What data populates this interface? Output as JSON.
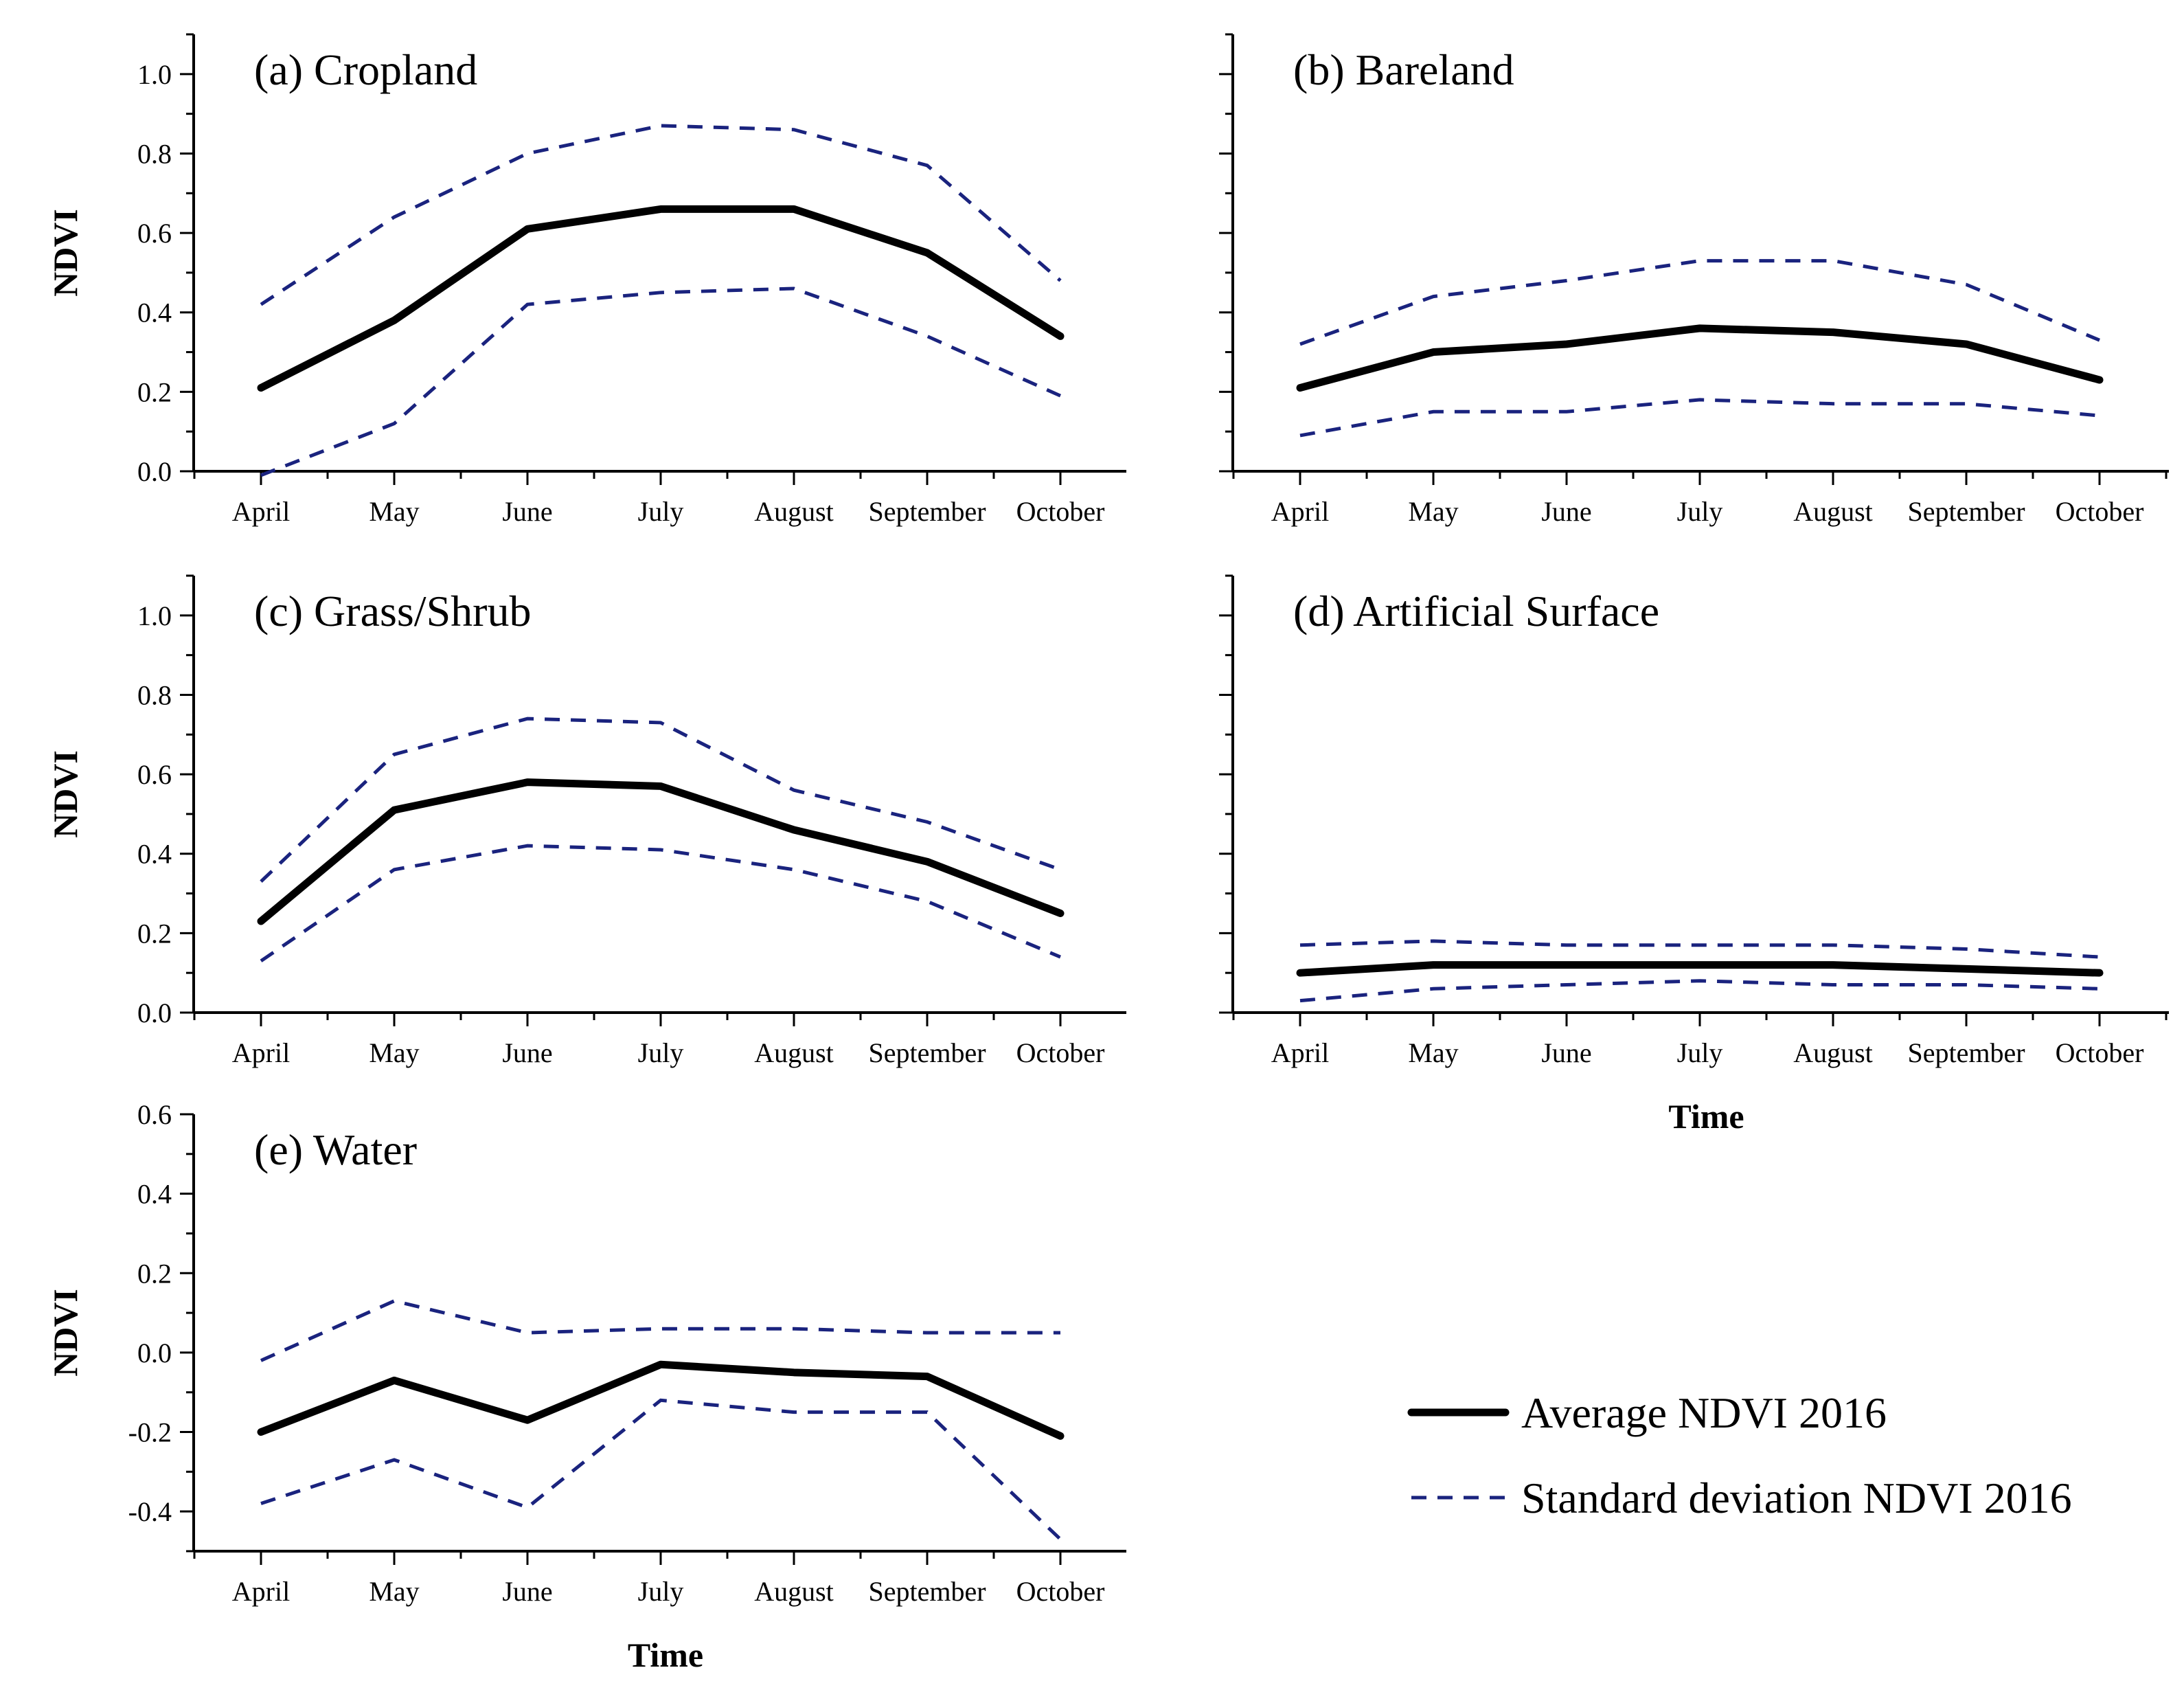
{
  "figure": {
    "legend": {
      "average_label": "Average NDVI 2016",
      "sd_label": "Standard deviation NDVI 2016"
    },
    "colors": {
      "average": "#000000",
      "sd": "#1a237e"
    }
  },
  "chart_data": [
    {
      "id": "a",
      "type": "line",
      "title": "(a) Cropland",
      "xlabel": "",
      "ylabel": "NDVI",
      "categories": [
        "April",
        "May",
        "June",
        "July",
        "August",
        "September",
        "October"
      ],
      "ylim": [
        0,
        1.1
      ],
      "yticks": [
        "0.0",
        "0.2",
        "0.4",
        "0.6",
        "0.8",
        "1.0"
      ],
      "series": [
        {
          "name": "Average NDVI 2016",
          "style": "solid",
          "values": [
            0.21,
            0.38,
            0.61,
            0.66,
            0.66,
            0.55,
            0.34
          ]
        },
        {
          "name": "Standard deviation NDVI 2016 (upper)",
          "style": "dashed",
          "values": [
            0.42,
            0.64,
            0.8,
            0.87,
            0.86,
            0.77,
            0.48
          ]
        },
        {
          "name": "Standard deviation NDVI 2016 (lower)",
          "style": "dashed",
          "values": [
            -0.01,
            0.12,
            0.42,
            0.45,
            0.46,
            0.34,
            0.19
          ]
        }
      ]
    },
    {
      "id": "b",
      "type": "line",
      "title": "(b) Bareland",
      "xlabel": "",
      "ylabel": "",
      "categories": [
        "April",
        "May",
        "June",
        "July",
        "August",
        "September",
        "October"
      ],
      "ylim": [
        0,
        1.1
      ],
      "yticks": [],
      "series": [
        {
          "name": "Average NDVI 2016",
          "style": "solid",
          "values": [
            0.21,
            0.3,
            0.32,
            0.36,
            0.35,
            0.32,
            0.23
          ]
        },
        {
          "name": "Standard deviation NDVI 2016 (upper)",
          "style": "dashed",
          "values": [
            0.32,
            0.44,
            0.48,
            0.53,
            0.53,
            0.47,
            0.33
          ]
        },
        {
          "name": "Standard deviation NDVI 2016 (lower)",
          "style": "dashed",
          "values": [
            0.09,
            0.15,
            0.15,
            0.18,
            0.17,
            0.17,
            0.14
          ]
        }
      ]
    },
    {
      "id": "c",
      "type": "line",
      "title": "(c) Grass/Shrub",
      "xlabel": "",
      "ylabel": "NDVI",
      "categories": [
        "April",
        "May",
        "June",
        "July",
        "August",
        "September",
        "October"
      ],
      "ylim": [
        0,
        1.1
      ],
      "yticks": [
        "0.0",
        "0.2",
        "0.4",
        "0.6",
        "0.8",
        "1.0"
      ],
      "series": [
        {
          "name": "Average NDVI 2016",
          "style": "solid",
          "values": [
            0.23,
            0.51,
            0.58,
            0.57,
            0.46,
            0.38,
            0.25
          ]
        },
        {
          "name": "Standard deviation NDVI 2016 (upper)",
          "style": "dashed",
          "values": [
            0.33,
            0.65,
            0.74,
            0.73,
            0.56,
            0.48,
            0.36
          ]
        },
        {
          "name": "Standard deviation NDVI 2016 (lower)",
          "style": "dashed",
          "values": [
            0.13,
            0.36,
            0.42,
            0.41,
            0.36,
            0.28,
            0.14
          ]
        }
      ]
    },
    {
      "id": "d",
      "type": "line",
      "title": "(d) Artificial Surface",
      "xlabel": "Time",
      "ylabel": "",
      "categories": [
        "April",
        "May",
        "June",
        "July",
        "August",
        "September",
        "October"
      ],
      "ylim": [
        0,
        1.1
      ],
      "yticks": [],
      "series": [
        {
          "name": "Average NDVI 2016",
          "style": "solid",
          "values": [
            0.1,
            0.12,
            0.12,
            0.12,
            0.12,
            0.11,
            0.1
          ]
        },
        {
          "name": "Standard deviation NDVI 2016 (upper)",
          "style": "dashed",
          "values": [
            0.17,
            0.18,
            0.17,
            0.17,
            0.17,
            0.16,
            0.14
          ]
        },
        {
          "name": "Standard deviation NDVI 2016 (lower)",
          "style": "dashed",
          "values": [
            0.03,
            0.06,
            0.07,
            0.08,
            0.07,
            0.07,
            0.06
          ]
        }
      ]
    },
    {
      "id": "e",
      "type": "line",
      "title": "(e) Water",
      "xlabel": "Time",
      "ylabel": "NDVI",
      "categories": [
        "April",
        "May",
        "June",
        "July",
        "August",
        "September",
        "October"
      ],
      "ylim": [
        -0.5,
        0.6
      ],
      "yticks": [
        "-0.4",
        "-0.2",
        "0.0",
        "0.2",
        "0.4",
        "0.6"
      ],
      "series": [
        {
          "name": "Average NDVI 2016",
          "style": "solid",
          "values": [
            -0.2,
            -0.07,
            -0.17,
            -0.03,
            -0.05,
            -0.06,
            -0.21
          ]
        },
        {
          "name": "Standard deviation NDVI 2016 (upper)",
          "style": "dashed",
          "values": [
            -0.02,
            0.13,
            0.05,
            0.06,
            0.06,
            0.05,
            0.05
          ]
        },
        {
          "name": "Standard deviation NDVI 2016 (lower)",
          "style": "dashed",
          "values": [
            -0.38,
            -0.27,
            -0.39,
            -0.12,
            -0.15,
            -0.15,
            -0.47
          ]
        }
      ]
    }
  ]
}
